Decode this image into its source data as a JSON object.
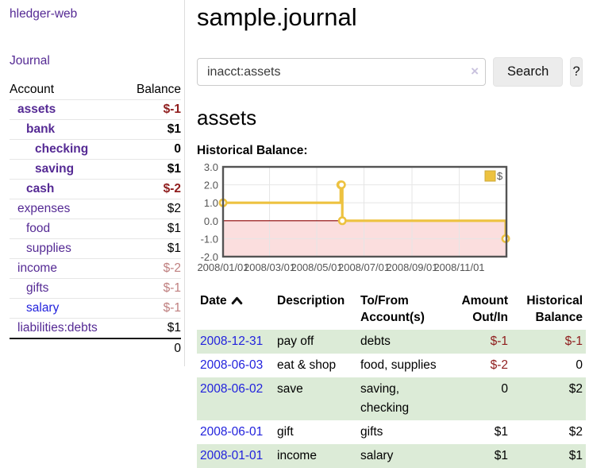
{
  "app": {
    "title": "hledger-web"
  },
  "sidebar": {
    "journal_link": "Journal",
    "account_header": "Account",
    "balance_header": "Balance",
    "accounts": [
      {
        "name": "assets",
        "balance": "$-1"
      },
      {
        "name": "bank",
        "balance": "$1"
      },
      {
        "name": "checking",
        "balance": "0"
      },
      {
        "name": "saving",
        "balance": "$1"
      },
      {
        "name": "cash",
        "balance": "$-2"
      },
      {
        "name": "expenses",
        "balance": "$2"
      },
      {
        "name": "food",
        "balance": "$1"
      },
      {
        "name": "supplies",
        "balance": "$1"
      },
      {
        "name": "income",
        "balance": "$-2"
      },
      {
        "name": "gifts",
        "balance": "$-1"
      },
      {
        "name": "salary",
        "balance": "$-1"
      },
      {
        "name": "liabilities:debts",
        "balance": "$1"
      }
    ],
    "total": "0"
  },
  "page": {
    "title": "sample.journal"
  },
  "search": {
    "value": "inacct:assets",
    "clear_icon": "×",
    "search_label": "Search",
    "help_label": "?"
  },
  "account_view": {
    "heading": "assets",
    "chart_title": "Historical Balance:"
  },
  "chart_data": {
    "type": "line",
    "style": "step",
    "title": "Historical Balance",
    "series": [
      {
        "name": "$",
        "color": "#edc240",
        "points": [
          [
            "2008-01-01",
            1.0
          ],
          [
            "2008-06-01",
            2.0
          ],
          [
            "2008-06-02",
            2.0
          ],
          [
            "2008-06-03",
            0.0
          ],
          [
            "2008-12-31",
            -1.0
          ]
        ]
      }
    ],
    "xlim": [
      "2008-01-01",
      "2009-01-01"
    ],
    "ylim": [
      -2.0,
      3.0
    ],
    "yticks": [
      3.0,
      2.0,
      1.0,
      0.0,
      -1.0,
      -2.0
    ],
    "xticks": [
      "2008/01/01",
      "2008/03/01",
      "2008/05/01",
      "2008/07/01",
      "2008/09/01",
      "2008/11/01"
    ],
    "legend": {
      "label": "$",
      "position": "top-right"
    },
    "grid": true,
    "negative_region_fill": "#fbdede",
    "zero_line_color": "#8b0000",
    "grid_color": "#e6e6e6",
    "border_color": "#545454"
  },
  "register": {
    "headers": {
      "date": "Date",
      "description": "Description",
      "accounts": "To/From\nAccount(s)",
      "amount": "Amount\nOut/In",
      "balance": "Historical\nBalance"
    },
    "sort_icon": "chevron-up",
    "rows": [
      {
        "date": "2008-12-31",
        "description": "pay off",
        "accounts": "debts",
        "amount": "$-1",
        "balance": "$-1"
      },
      {
        "date": "2008-06-03",
        "description": "eat & shop",
        "accounts": "food, supplies",
        "amount": "$-2",
        "balance": "0"
      },
      {
        "date": "2008-06-02",
        "description": "save",
        "accounts": "saving,\nchecking",
        "amount": "0",
        "balance": "$2"
      },
      {
        "date": "2008-06-01",
        "description": "gift",
        "accounts": "gifts",
        "amount": "$1",
        "balance": "$2"
      },
      {
        "date": "2008-01-01",
        "description": "income",
        "accounts": "salary",
        "amount": "$1",
        "balance": "$1"
      }
    ]
  },
  "colors": {
    "purple": "#552a94",
    "blue": "#2222dd",
    "neg_strong": "#8f1d1d",
    "neg_faded": "#bf7f7f",
    "row_green": "#dcebd7",
    "chart_yellow": "#edc240",
    "chart_pink": "#fbdede",
    "zero_line": "#8b0000",
    "divider": "#dddddd",
    "button_bg": "#ececec"
  }
}
